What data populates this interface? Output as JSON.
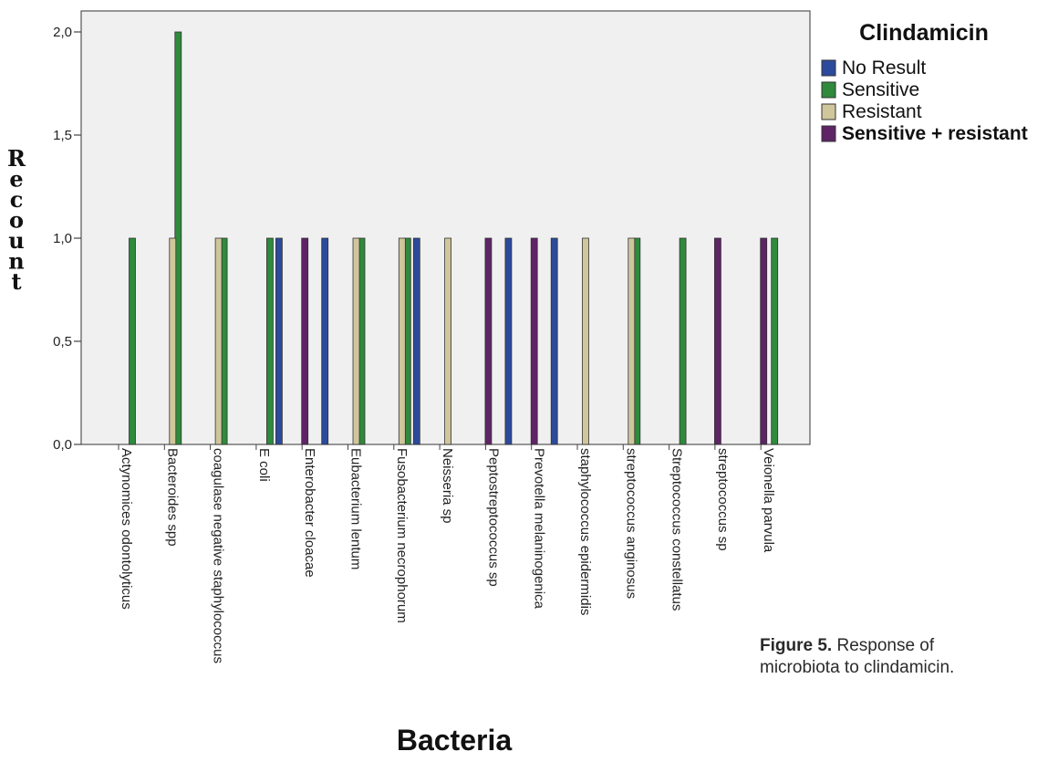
{
  "chart_data": {
    "type": "bar",
    "ylabel": "Recount",
    "xlabel": "Bacteria",
    "ylim": [
      0,
      2.2
    ],
    "yticks": [
      "0,0",
      "0,5",
      "1,0",
      "1,5",
      "2,0"
    ],
    "ytick_values": [
      0,
      0.5,
      1.0,
      1.5,
      2.0
    ],
    "grid": false,
    "legend": {
      "title": "Clindamicin",
      "position": "right"
    },
    "categories": [
      "Actynomices odontolyticus",
      "Bacteroides spp",
      "coagulase negative staphylococcus",
      "E coli",
      "Enterobacter cloacae",
      "Eubacterium lentum",
      "Fusobacterium necrophorum",
      "Neisseria sp",
      "Peptostreptococcus sp",
      "Prevotella melaninogenica",
      "staphylococcus epidermidis",
      "streptococcus anginosus",
      "Streptococcus constellatus",
      "streptococcus sp",
      "Veionella parvula"
    ],
    "series": [
      {
        "name": "No Result",
        "color": "#2c4a9c",
        "values": [
          0,
          0,
          0,
          1,
          1,
          0,
          1,
          0,
          1,
          1,
          0,
          0,
          0,
          0,
          0
        ]
      },
      {
        "name": "Sensitive",
        "color": "#2f8a3c",
        "values": [
          1,
          2,
          1,
          1,
          0,
          1,
          1,
          0,
          0,
          0,
          0,
          1,
          1,
          0,
          1
        ]
      },
      {
        "name": "Resistant",
        "color": "#cfc69b",
        "values": [
          0,
          1,
          1,
          0,
          0,
          1,
          1,
          1,
          0,
          0,
          1,
          1,
          0,
          0,
          0
        ]
      },
      {
        "name": "Sensitive + resistant",
        "color": "#5e2466",
        "values": [
          0,
          0,
          0,
          0,
          1,
          0,
          0,
          0,
          1,
          1,
          0,
          0,
          0,
          1,
          1
        ]
      }
    ]
  },
  "caption": {
    "label": "Figure 5.",
    "text": "Response of microbiota to clindamicin."
  }
}
